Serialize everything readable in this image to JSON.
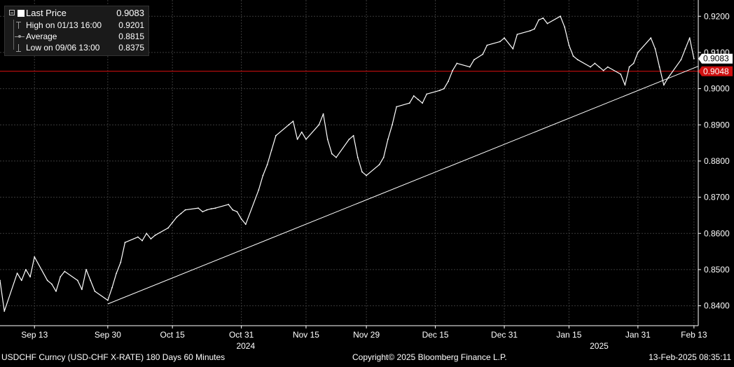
{
  "legend": {
    "last_price": {
      "label": "Last Price",
      "value": "0.9083"
    },
    "high": {
      "label": "High on 01/13 16:00",
      "value": "0.9201"
    },
    "average": {
      "label": "Average",
      "value": "0.8815"
    },
    "low": {
      "label": "Low on 09/06 13:00",
      "value": "0.8375"
    }
  },
  "footer": {
    "left": "USDCHF Curncy (USD-CHF X-RATE) 180 Days 60 Minutes",
    "center": "Copyright© 2025 Bloomberg Finance L.P.",
    "right": "13-Feb-2025 08:35:11"
  },
  "colors": {
    "background": "#000000",
    "price_line": "#ffffff",
    "grid": "#3a3a3a",
    "horizontal_level": "#e01010",
    "level_tag": "#d01010",
    "last_tag": "#ffffff",
    "trendline": "#ffffff"
  },
  "chart_data": {
    "type": "line",
    "series": [
      {
        "name": "Last Price",
        "x": [
          "2024-09-05",
          "2024-09-06",
          "2024-09-09",
          "2024-09-10",
          "2024-09-11",
          "2024-09-12",
          "2024-09-13",
          "2024-09-16",
          "2024-09-17",
          "2024-09-18",
          "2024-09-19",
          "2024-09-20",
          "2024-09-23",
          "2024-09-24",
          "2024-09-25",
          "2024-09-26",
          "2024-09-27",
          "2024-09-30",
          "2024-10-01",
          "2024-10-02",
          "2024-10-03",
          "2024-10-04",
          "2024-10-07",
          "2024-10-08",
          "2024-10-09",
          "2024-10-10",
          "2024-10-11",
          "2024-10-14",
          "2024-10-15",
          "2024-10-16",
          "2024-10-17",
          "2024-10-18",
          "2024-10-21",
          "2024-10-22",
          "2024-10-23",
          "2024-10-24",
          "2024-10-25",
          "2024-10-28",
          "2024-10-29",
          "2024-10-30",
          "2024-10-31",
          "2024-11-01",
          "2024-11-04",
          "2024-11-05",
          "2024-11-06",
          "2024-11-07",
          "2024-11-08",
          "2024-11-11",
          "2024-11-12",
          "2024-11-13",
          "2024-11-14",
          "2024-11-15",
          "2024-11-18",
          "2024-11-19",
          "2024-11-20",
          "2024-11-21",
          "2024-11-22",
          "2024-11-25",
          "2024-11-26",
          "2024-11-27",
          "2024-11-28",
          "2024-11-29",
          "2024-12-02",
          "2024-12-03",
          "2024-12-04",
          "2024-12-05",
          "2024-12-06",
          "2024-12-09",
          "2024-12-10",
          "2024-12-11",
          "2024-12-12",
          "2024-12-13",
          "2024-12-16",
          "2024-12-17",
          "2024-12-18",
          "2024-12-19",
          "2024-12-20",
          "2024-12-23",
          "2024-12-24",
          "2024-12-26",
          "2024-12-27",
          "2024-12-30",
          "2024-12-31",
          "2025-01-02",
          "2025-01-03",
          "2025-01-06",
          "2025-01-07",
          "2025-01-08",
          "2025-01-09",
          "2025-01-10",
          "2025-01-13",
          "2025-01-14",
          "2025-01-15",
          "2025-01-16",
          "2025-01-17",
          "2025-01-20",
          "2025-01-21",
          "2025-01-22",
          "2025-01-23",
          "2025-01-24",
          "2025-01-27",
          "2025-01-28",
          "2025-01-29",
          "2025-01-30",
          "2025-01-31",
          "2025-02-03",
          "2025-02-04",
          "2025-02-05",
          "2025-02-06",
          "2025-02-07",
          "2025-02-10",
          "2025-02-11",
          "2025-02-12",
          "2025-02-13"
        ],
        "values": [
          0.847,
          0.8385,
          0.849,
          0.847,
          0.85,
          0.848,
          0.8535,
          0.847,
          0.846,
          0.844,
          0.848,
          0.8495,
          0.847,
          0.8445,
          0.85,
          0.847,
          0.844,
          0.8415,
          0.845,
          0.849,
          0.852,
          0.8575,
          0.859,
          0.858,
          0.86,
          0.8585,
          0.8595,
          0.8615,
          0.863,
          0.8645,
          0.8655,
          0.8665,
          0.867,
          0.866,
          0.8665,
          0.8668,
          0.867,
          0.868,
          0.8665,
          0.866,
          0.864,
          0.8625,
          0.872,
          0.876,
          0.879,
          0.883,
          0.887,
          0.89,
          0.891,
          0.886,
          0.888,
          0.886,
          0.89,
          0.893,
          0.886,
          0.882,
          0.881,
          0.886,
          0.887,
          0.881,
          0.877,
          0.876,
          0.879,
          0.881,
          0.886,
          0.89,
          0.895,
          0.896,
          0.898,
          0.897,
          0.896,
          0.8985,
          0.8995,
          0.9,
          0.902,
          0.905,
          0.907,
          0.906,
          0.908,
          0.9095,
          0.912,
          0.913,
          0.914,
          0.911,
          0.915,
          0.916,
          0.9165,
          0.919,
          0.9195,
          0.918,
          0.92,
          0.917,
          0.912,
          0.909,
          0.908,
          0.906,
          0.907,
          0.906,
          0.905,
          0.906,
          0.904,
          0.901,
          0.906,
          0.907,
          0.91,
          0.914,
          0.911,
          0.906,
          0.901,
          0.903,
          0.908,
          0.911,
          0.914,
          0.9083
        ]
      }
    ],
    "x_ticks": [
      "Sep 13",
      "Sep 30",
      "Oct 15",
      "Oct 31",
      "Nov 15",
      "Nov 29",
      "Dec 15",
      "Dec 31",
      "Jan 15",
      "Jan 31",
      "Feb 13"
    ],
    "x_tick_dates": [
      "2024-09-13",
      "2024-09-30",
      "2024-10-15",
      "2024-10-31",
      "2024-11-15",
      "2024-11-29",
      "2024-12-15",
      "2024-12-31",
      "2025-01-15",
      "2025-01-31",
      "2025-02-13"
    ],
    "year_labels": [
      {
        "label": "2024",
        "date": "2024-11-01"
      },
      {
        "label": "2025",
        "date": "2025-01-22"
      }
    ],
    "y_ticks": [
      "0.8400",
      "0.8500",
      "0.8600",
      "0.8700",
      "0.8800",
      "0.8900",
      "0.9000",
      "0.9100",
      "0.9200"
    ],
    "y_tick_values": [
      0.84,
      0.85,
      0.86,
      0.87,
      0.88,
      0.89,
      0.9,
      0.91,
      0.92
    ],
    "ylim": [
      0.8345,
      0.9245
    ],
    "xlim": [
      "2024-09-05",
      "2025-02-14"
    ],
    "grid": true,
    "horizontal_level": {
      "value": 0.9048,
      "label": "0.9048"
    },
    "last_value": {
      "value": 0.9083,
      "label": "0.9083"
    },
    "trendline": {
      "points": [
        [
          "2024-09-30",
          0.8405
        ],
        [
          "2025-02-14",
          0.9062
        ]
      ]
    },
    "legend_position": "top-left"
  }
}
